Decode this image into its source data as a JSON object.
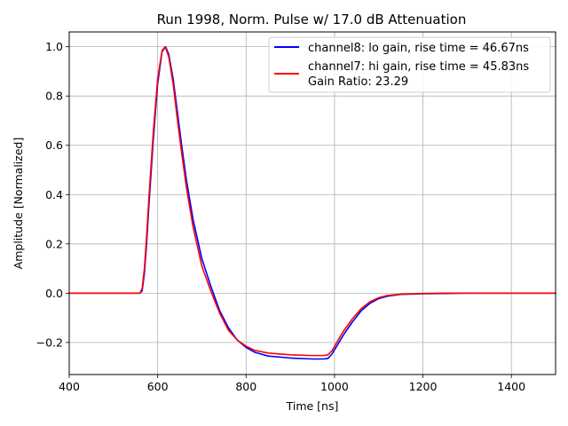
{
  "chart_data": {
    "type": "line",
    "title": "Run 1998, Norm. Pulse w/ 17.0 dB Attenuation",
    "xlabel": "Time [ns]",
    "ylabel": "Amplitude [Normalized]",
    "xlim": [
      400,
      1500
    ],
    "ylim": [
      -0.33,
      1.06
    ],
    "xticks": [
      400,
      600,
      800,
      1000,
      1200,
      1400
    ],
    "yticks": [
      -0.2,
      0.0,
      0.2,
      0.4,
      0.6,
      0.8,
      1.0
    ],
    "ytick_labels": [
      "−0.2",
      "0.0",
      "0.2",
      "0.4",
      "0.6",
      "0.8",
      "1.0"
    ],
    "grid": true,
    "legend_position": "top-right",
    "legend_note": "Gain Ratio: 23.29",
    "series": [
      {
        "name": "channel8: lo gain, rise time = 46.67ns",
        "color": "#0000ff",
        "x": [
          400,
          560,
          565,
          570,
          575,
          580,
          590,
          600,
          610,
          618,
          625,
          635,
          645,
          655,
          665,
          680,
          700,
          720,
          740,
          760,
          780,
          800,
          820,
          850,
          900,
          950,
          975,
          985,
          995,
          1005,
          1020,
          1040,
          1060,
          1080,
          1100,
          1120,
          1150,
          1200,
          1250,
          1300,
          1400,
          1500
        ],
        "y": [
          0.0,
          0.0,
          0.01,
          0.08,
          0.2,
          0.35,
          0.62,
          0.85,
          0.98,
          1.0,
          0.97,
          0.87,
          0.73,
          0.59,
          0.46,
          0.3,
          0.14,
          0.03,
          -0.07,
          -0.14,
          -0.19,
          -0.22,
          -0.24,
          -0.255,
          -0.263,
          -0.267,
          -0.267,
          -0.265,
          -0.245,
          -0.215,
          -0.17,
          -0.118,
          -0.072,
          -0.041,
          -0.022,
          -0.012,
          -0.005,
          -0.002,
          -0.001,
          0.0,
          0.0,
          0.0
        ]
      },
      {
        "name": "channel7: hi gain, rise time = 45.83ns",
        "color": "#ff0000",
        "x": [
          400,
          560,
          565,
          570,
          575,
          580,
          590,
          600,
          610,
          617,
          625,
          635,
          645,
          655,
          665,
          680,
          700,
          720,
          740,
          760,
          780,
          800,
          820,
          850,
          900,
          950,
          975,
          985,
          995,
          1005,
          1020,
          1040,
          1060,
          1080,
          1100,
          1120,
          1150,
          1200,
          1250,
          1300,
          1400,
          1500
        ],
        "y": [
          0.0,
          0.0,
          0.02,
          0.1,
          0.23,
          0.38,
          0.65,
          0.87,
          0.985,
          1.0,
          0.96,
          0.85,
          0.7,
          0.56,
          0.43,
          0.27,
          0.11,
          0.01,
          -0.08,
          -0.15,
          -0.19,
          -0.215,
          -0.232,
          -0.243,
          -0.25,
          -0.253,
          -0.253,
          -0.25,
          -0.232,
          -0.2,
          -0.155,
          -0.105,
          -0.063,
          -0.035,
          -0.018,
          -0.009,
          -0.004,
          -0.001,
          0.0,
          0.0,
          0.0,
          0.0
        ]
      }
    ]
  }
}
